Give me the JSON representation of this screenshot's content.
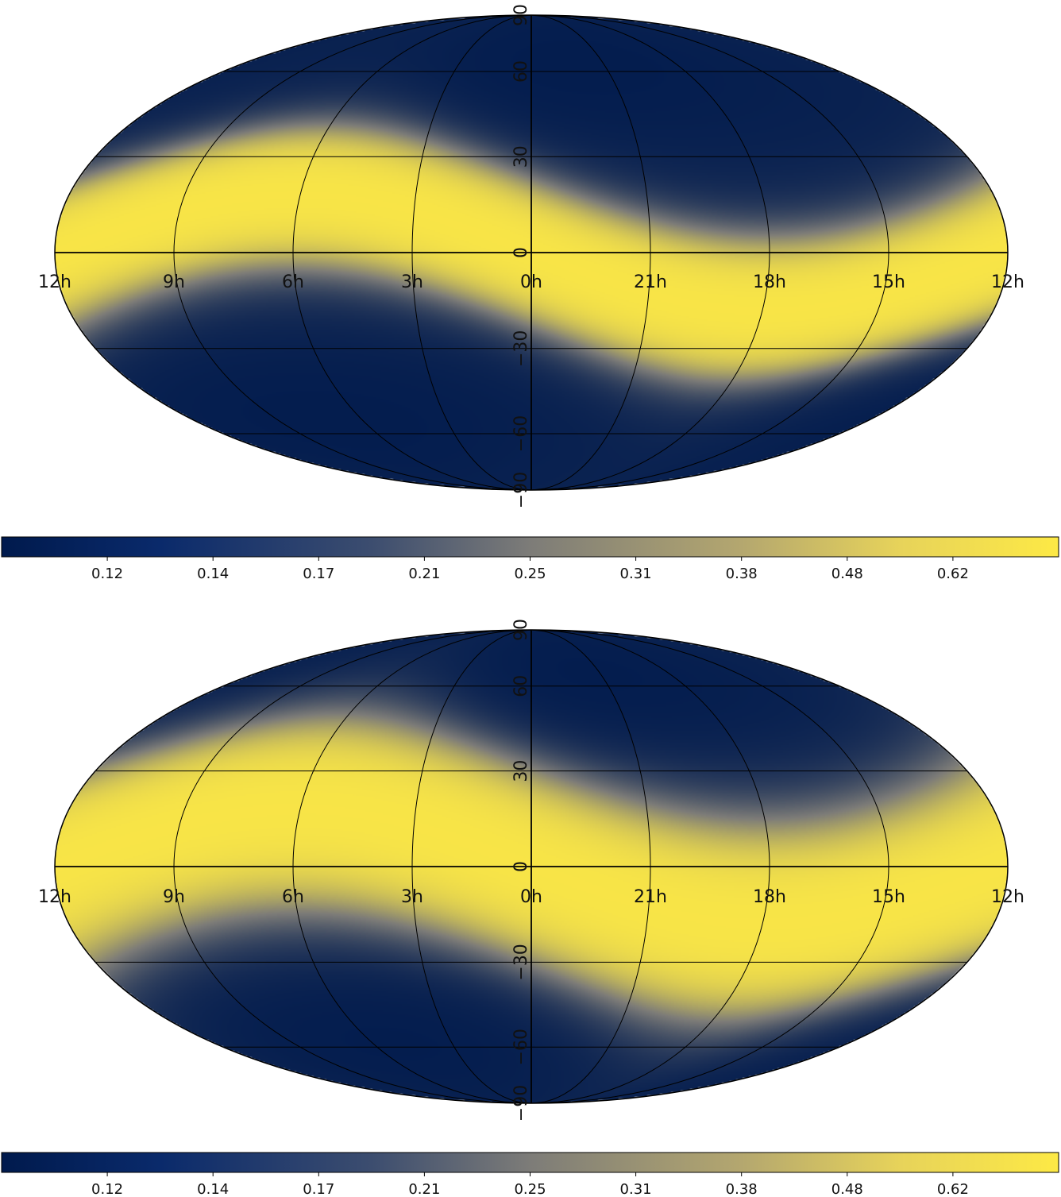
{
  "colors": {
    "low": "#001a4d",
    "mid": "#7d7c78",
    "high": "#fde945",
    "grid": "#000000",
    "frame": "#000000"
  },
  "maps": [
    {
      "name": "top-map",
      "ra_labels": [
        "12h",
        "9h",
        "6h",
        "3h",
        "0h",
        "21h",
        "18h",
        "15h",
        "12h"
      ],
      "dec_labels": [
        "90",
        "60",
        "30",
        "0",
        "−30",
        "−60",
        "−90"
      ],
      "band": {
        "amplitude_deg": 18,
        "halfwidth_deg": 30,
        "north_extra_ra_h": 22,
        "south_extra_ra_h": 7
      },
      "colorbar": {
        "ticks": [
          "0.12",
          "0.14",
          "0.17",
          "0.21",
          "0.25",
          "0.31",
          "0.38",
          "0.48",
          "0.62"
        ]
      }
    },
    {
      "name": "bottom-map",
      "ra_labels": [
        "12h",
        "9h",
        "6h",
        "3h",
        "0h",
        "21h",
        "18h",
        "15h",
        "12h"
      ],
      "dec_labels": [
        "90",
        "60",
        "30",
        "0",
        "−30",
        "−60",
        "−90"
      ],
      "band": {
        "amplitude_deg": 18,
        "halfwidth_deg": 42,
        "north_extra_ra_h": 22,
        "south_extra_ra_h": 5
      },
      "colorbar": {
        "ticks": [
          "0.12",
          "0.14",
          "0.17",
          "0.21",
          "0.25",
          "0.31",
          "0.38",
          "0.48",
          "0.62"
        ]
      }
    }
  ]
}
